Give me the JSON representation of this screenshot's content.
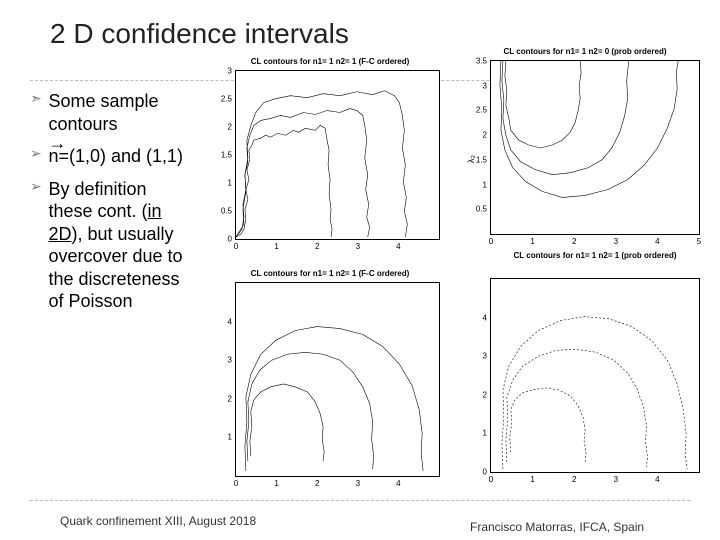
{
  "title": "2 D confidence intervals",
  "bullets": {
    "b1": "Some sample contours",
    "b2_a": "n",
    "b2_b": "=(1,0) and (1,1)",
    "b3_a": "By definition these cont. (",
    "b3_u": "in 2D",
    "b3_b": "), but usually overcover due to the discreteness of Poisson"
  },
  "footer": {
    "left": "Quark confinement XIII, August 2018",
    "right": "Francisco Matorras, IFCA, Spain"
  },
  "charts": {
    "tl": {
      "title": "CL contours for n1= 1 n2= 1 (F-C ordered)",
      "xlim": [
        0,
        5
      ],
      "ylim": [
        0,
        3
      ],
      "xticks": [
        0,
        1,
        2,
        3,
        4
      ],
      "yticks": [
        0,
        0.5,
        1,
        1.5,
        2,
        2.5,
        3
      ]
    },
    "tr": {
      "title": "CL contours for n1= 1 n2= 0 (prob ordered)",
      "xlim": [
        0,
        5
      ],
      "ylim": [
        0,
        3.5
      ],
      "xticks": [
        0,
        1,
        2,
        3,
        4,
        5
      ],
      "yticks": [
        0.5,
        1,
        1.5,
        2,
        2.5,
        3,
        3.5
      ],
      "ylabel": "λ₂",
      "xlabel": "CL contours for n1= 1 n2= 1 (prob ordered)"
    },
    "bl": {
      "title": "CL contours for n1= 1 n2= 1 (F-C ordered)",
      "xlim": [
        0,
        5
      ],
      "ylim": [
        0,
        5
      ],
      "xticks": [
        0,
        1,
        2,
        3,
        4
      ],
      "yticks": [
        1,
        2,
        3,
        4
      ]
    },
    "br": {
      "title": "",
      "xlim": [
        0,
        5
      ],
      "ylim": [
        0,
        5
      ],
      "xticks": [
        0,
        1,
        2,
        3,
        4
      ],
      "yticks": [
        0,
        1,
        2,
        3,
        4
      ]
    }
  },
  "style": {
    "title_fontsize": 28,
    "bullet_fontsize": 18,
    "tick_fontsize": 8,
    "chart_title_fontsize": 8,
    "line_color": "#000000",
    "bg_color": "#ffffff",
    "dash_color": "#bbbbbb"
  }
}
